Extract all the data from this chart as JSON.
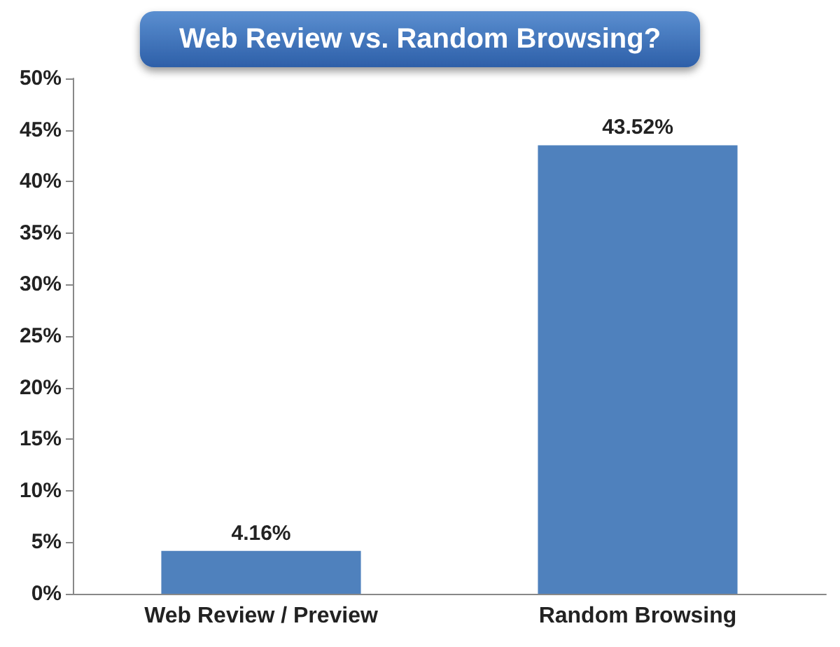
{
  "chart_data": {
    "type": "bar",
    "title": "Web Review vs. Random Browsing?",
    "categories": [
      "Web Review / Preview",
      "Random Browsing"
    ],
    "values": [
      4.16,
      43.52
    ],
    "color": "#4f81bd",
    "value_labels": [
      "4.16%",
      "43.52%"
    ],
    "ylim": [
      0,
      50
    ],
    "yticks": [
      {
        "value": 0,
        "label": "0%"
      },
      {
        "value": 5,
        "label": "5%"
      },
      {
        "value": 10,
        "label": "10%"
      },
      {
        "value": 15,
        "label": "15%"
      },
      {
        "value": 20,
        "label": "20%"
      },
      {
        "value": 25,
        "label": "25%"
      },
      {
        "value": 30,
        "label": "30%"
      },
      {
        "value": 35,
        "label": "35%"
      },
      {
        "value": 40,
        "label": "40%"
      },
      {
        "value": 45,
        "label": "45%"
      },
      {
        "value": 50,
        "label": "50%"
      }
    ],
    "grid": false
  }
}
